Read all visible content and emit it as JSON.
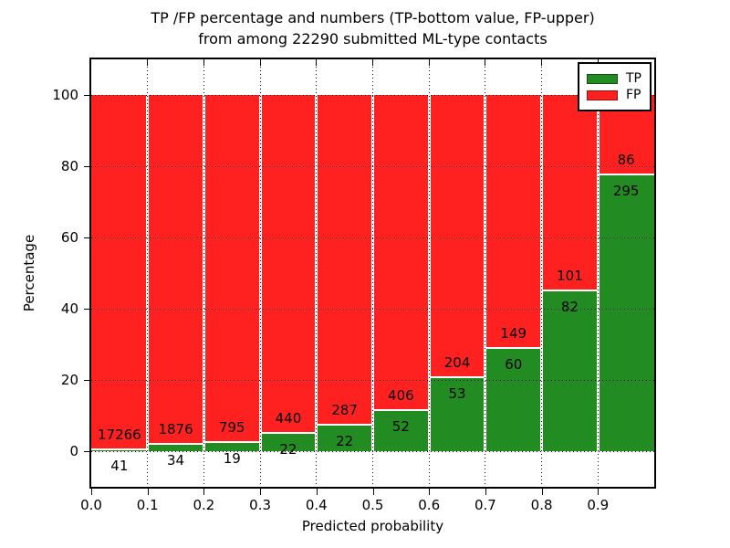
{
  "figure": {
    "title_line1": "TP /FP percentage and numbers (TP-bottom value, FP-upper)",
    "title_line2": "from among 22290 submitted ML-type contacts"
  },
  "chart_data": {
    "type": "bar",
    "variant": "stacked-percentage",
    "title": "TP /FP percentage and numbers (TP-bottom value, FP-upper)\nfrom among 22290 submitted ML-type contacts",
    "xlabel": "Predicted probability",
    "ylabel": "Percentage",
    "total_contacts": 22290,
    "xlim": [
      0.0,
      1.0
    ],
    "ylim": [
      -10,
      110
    ],
    "bin_edges": [
      0.0,
      0.1,
      0.2,
      0.3,
      0.4,
      0.5,
      0.6,
      0.7,
      0.8,
      0.9,
      1.0
    ],
    "xtick_values": [
      0.0,
      0.1,
      0.2,
      0.3,
      0.4,
      0.5,
      0.6,
      0.7,
      0.8,
      0.9
    ],
    "xtick_labels": [
      "0.0",
      "0.1",
      "0.2",
      "0.3",
      "0.4",
      "0.5",
      "0.6",
      "0.7",
      "0.8",
      "0.9"
    ],
    "ytick_values": [
      0,
      20,
      40,
      60,
      80,
      100
    ],
    "ytick_labels": [
      "0",
      "20",
      "40",
      "60",
      "80",
      "100"
    ],
    "grid": true,
    "legend_position": "upper right",
    "series": [
      {
        "name": "TP",
        "color": "#228B22",
        "counts": [
          41,
          34,
          19,
          22,
          22,
          52,
          53,
          60,
          82,
          295
        ]
      },
      {
        "name": "FP",
        "color": "#FF2020",
        "counts": [
          17266,
          1876,
          795,
          440,
          287,
          406,
          204,
          149,
          101,
          86
        ]
      }
    ],
    "tp_percent_by_bin": [
      0.24,
      1.78,
      2.33,
      4.76,
      7.12,
      11.35,
      20.62,
      28.71,
      44.81,
      77.43
    ]
  }
}
